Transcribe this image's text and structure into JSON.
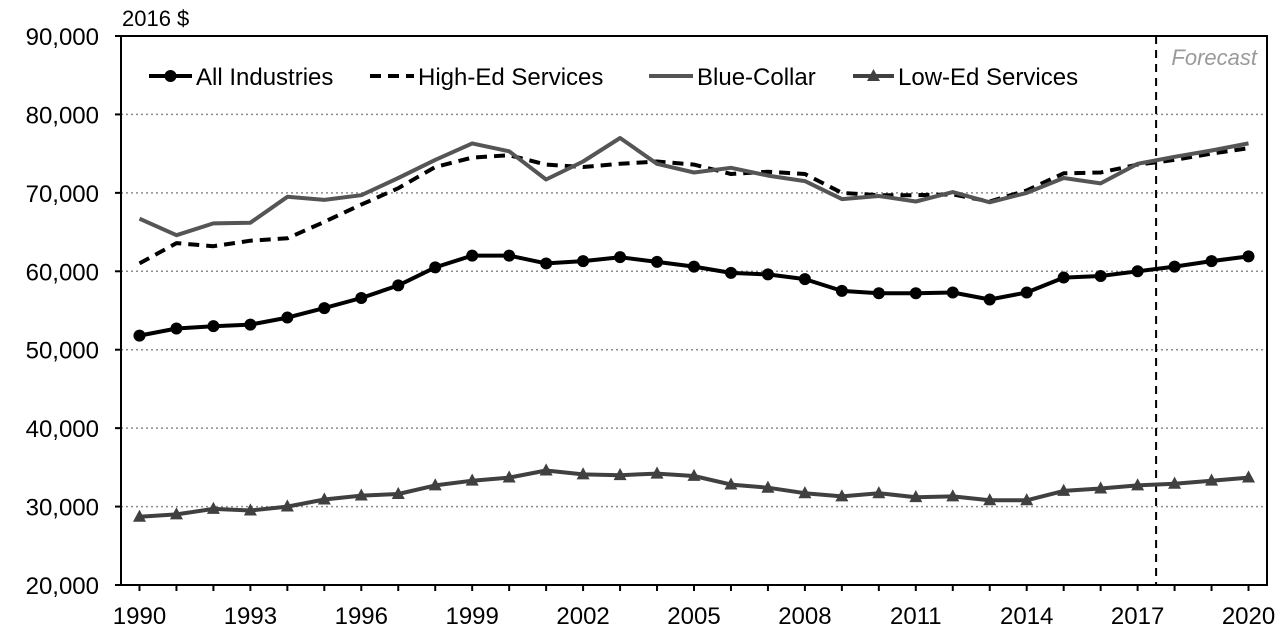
{
  "chart_data": {
    "type": "line",
    "unit_label": "2016 $",
    "forecast_label": "Forecast",
    "forecast_start": 2017.5,
    "ylim": [
      20000,
      90000
    ],
    "xlim": [
      1990,
      2020
    ],
    "y_ticks": [
      20000,
      30000,
      40000,
      50000,
      60000,
      70000,
      80000,
      90000
    ],
    "y_tick_labels": [
      "20,000",
      "30,000",
      "40,000",
      "50,000",
      "60,000",
      "70,000",
      "80,000",
      "90,000"
    ],
    "x_ticks": [
      1990,
      1993,
      1996,
      1999,
      2002,
      2005,
      2008,
      2011,
      2014,
      2017,
      2020
    ],
    "x_tick_labels": [
      "1990",
      "1993",
      "1996",
      "1999",
      "2002",
      "2005",
      "2008",
      "2011",
      "2014",
      "2017",
      "2020"
    ],
    "grid": "horizontal dotted",
    "legend_position": "top",
    "x": [
      1990,
      1991,
      1992,
      1993,
      1994,
      1995,
      1996,
      1997,
      1998,
      1999,
      2000,
      2001,
      2002,
      2003,
      2004,
      2005,
      2006,
      2007,
      2008,
      2009,
      2010,
      2011,
      2012,
      2013,
      2014,
      2015,
      2016,
      2017,
      2018,
      2019,
      2020
    ],
    "series": [
      {
        "name": "All Industries",
        "color": "#000000",
        "style": "solid",
        "marker": "circle",
        "values": [
          51800,
          52700,
          53000,
          53200,
          54100,
          55300,
          56600,
          58200,
          60500,
          62000,
          62000,
          61000,
          61300,
          61800,
          61200,
          60600,
          59800,
          59600,
          59000,
          57500,
          57200,
          57200,
          57300,
          56400,
          57300,
          59200,
          59400,
          60000,
          60600,
          61300,
          61900
        ]
      },
      {
        "name": "High-Ed Services",
        "color": "#000000",
        "style": "dashed",
        "marker": "none",
        "values": [
          61000,
          63600,
          63200,
          63900,
          64200,
          66300,
          68500,
          70600,
          73300,
          74500,
          74800,
          73600,
          73300,
          73700,
          74000,
          73600,
          72400,
          72700,
          72400,
          70000,
          69700,
          69700,
          69800,
          68900,
          70300,
          72500,
          72600,
          73600,
          74200,
          75000,
          75700
        ]
      },
      {
        "name": "Blue-Collar",
        "color": "#555555",
        "style": "solid",
        "marker": "none",
        "values": [
          66700,
          64600,
          66100,
          66200,
          69500,
          69100,
          69700,
          71900,
          74200,
          76300,
          75300,
          71700,
          74000,
          77000,
          73700,
          72600,
          73200,
          72200,
          71500,
          69200,
          69600,
          68900,
          70100,
          68800,
          70000,
          71900,
          71200,
          73700,
          74600,
          75400,
          76300
        ]
      },
      {
        "name": "Low-Ed Services",
        "color": "#404040",
        "style": "solid",
        "marker": "triangle",
        "values": [
          28700,
          29000,
          29700,
          29500,
          30000,
          30900,
          31400,
          31600,
          32700,
          33300,
          33700,
          34600,
          34100,
          34000,
          34200,
          33900,
          32800,
          32400,
          31700,
          31300,
          31700,
          31200,
          31300,
          30800,
          30800,
          32000,
          32300,
          32700,
          32900,
          33300,
          33700
        ]
      }
    ]
  }
}
